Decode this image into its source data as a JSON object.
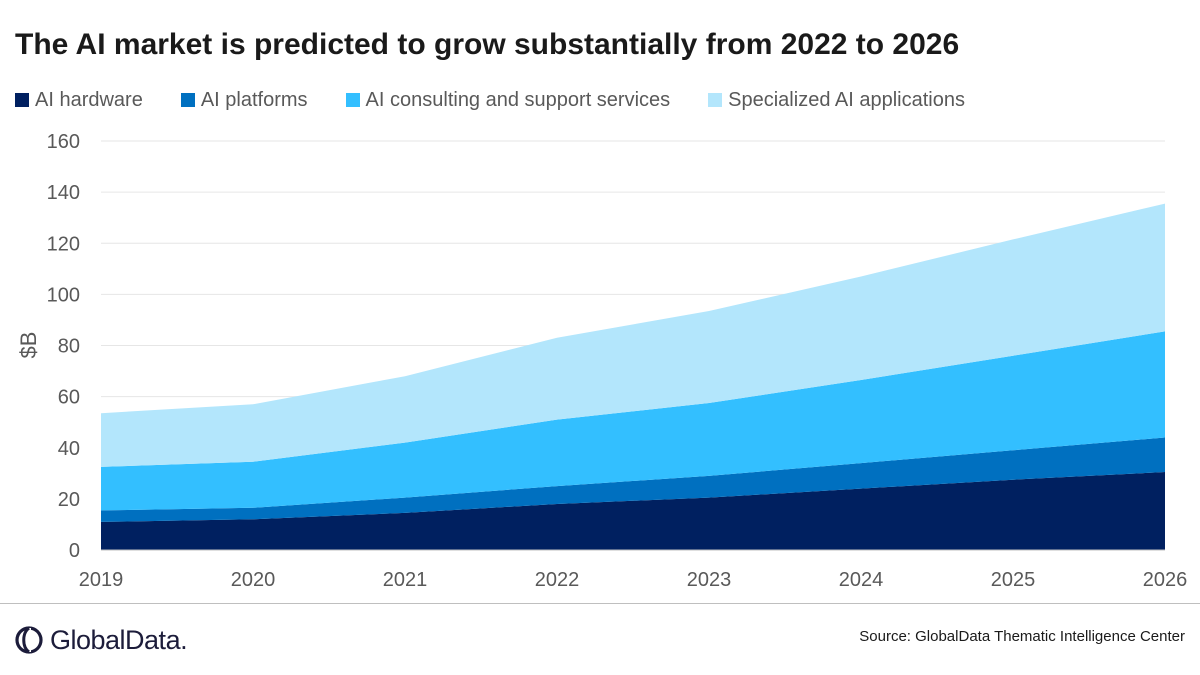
{
  "chart_data": {
    "type": "area",
    "stacked": true,
    "title": "The AI market is predicted to grow substantially from 2022 to 2026",
    "ylabel": "$B",
    "xlabel": "",
    "x": [
      "2019",
      "2020",
      "2021",
      "2022",
      "2023",
      "2024",
      "2025",
      "2026"
    ],
    "ylim": [
      0,
      160
    ],
    "yticks": [
      "0",
      "20",
      "40",
      "60",
      "80",
      "100",
      "120",
      "140",
      "160"
    ],
    "grid": "horizontal",
    "legend_position": "top-left",
    "series": [
      {
        "name": "AI hardware",
        "color": "#002060",
        "values": [
          11,
          12,
          14.5,
          18,
          20.5,
          24,
          27.5,
          30.5
        ]
      },
      {
        "name": "AI platforms",
        "color": "#0070C0",
        "values": [
          4.5,
          4.5,
          6,
          7,
          8.5,
          10,
          11.5,
          13.5
        ]
      },
      {
        "name": "AI consulting and support services",
        "color": "#33BFFF",
        "values": [
          17,
          18,
          21.5,
          26,
          28.5,
          32.5,
          37,
          41.5
        ]
      },
      {
        "name": "Specialized AI applications",
        "color": "#B3E6FC",
        "values": [
          21,
          22.5,
          26,
          32,
          36,
          40.5,
          45.5,
          50
        ]
      }
    ]
  },
  "footer": {
    "logo_text": "GlobalData.",
    "source": "Source:  GlobalData Thematic Intelligence Center"
  }
}
